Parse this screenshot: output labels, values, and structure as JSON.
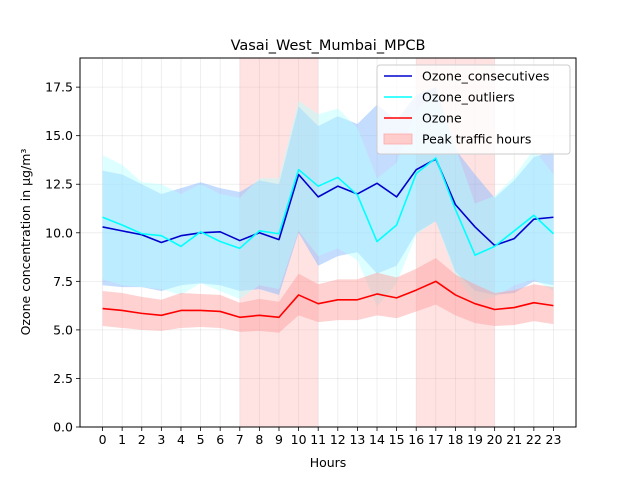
{
  "chart_data": {
    "type": "line",
    "title": "Vasai_West_Mumbai_MPCB",
    "xlabel": "Hours",
    "ylabel": "Ozone concentration in µg/m³",
    "x": [
      0,
      1,
      2,
      3,
      4,
      5,
      6,
      7,
      8,
      9,
      10,
      11,
      12,
      13,
      14,
      15,
      16,
      17,
      18,
      19,
      20,
      21,
      22,
      23
    ],
    "xlim": [
      -1.15,
      24.15
    ],
    "ylim": [
      0,
      19
    ],
    "yticks": [
      0.0,
      2.5,
      5.0,
      7.5,
      10.0,
      12.5,
      15.0,
      17.5
    ],
    "ytick_labels": [
      "0.0",
      "2.5",
      "5.0",
      "7.5",
      "10.0",
      "12.5",
      "15.0",
      "17.5"
    ],
    "grid": true,
    "legend_position": "top-right",
    "peak_traffic_hours": [
      [
        7,
        11
      ],
      [
        16,
        20
      ]
    ],
    "series": [
      {
        "name": "Ozone_consecutives",
        "color": "#0000cd",
        "band_color": "#7db3ff",
        "values": [
          10.3,
          10.1,
          9.9,
          9.5,
          9.85,
          10.0,
          10.05,
          9.6,
          10.0,
          9.65,
          13.0,
          11.85,
          12.4,
          12.0,
          12.55,
          11.85,
          13.25,
          13.8,
          11.45,
          10.3,
          9.35,
          9.7,
          10.7,
          10.8
        ],
        "lower": [
          7.3,
          7.2,
          7.2,
          7.0,
          7.3,
          7.4,
          7.3,
          7.0,
          7.1,
          6.8,
          10.0,
          8.3,
          8.8,
          9.0,
          7.9,
          8.3,
          10.0,
          10.6,
          8.0,
          7.0,
          6.8,
          6.9,
          7.5,
          7.3
        ],
        "upper": [
          13.2,
          13.0,
          12.5,
          12.0,
          12.3,
          12.6,
          12.3,
          12.1,
          12.7,
          12.5,
          16.5,
          15.5,
          16.0,
          15.6,
          16.6,
          15.8,
          17.1,
          17.5,
          14.3,
          13.0,
          11.8,
          12.7,
          13.9,
          14.2
        ]
      },
      {
        "name": "Ozone_outliers",
        "color": "#00ffff",
        "band_color": "#b3ffff",
        "values": [
          10.8,
          10.4,
          9.95,
          9.85,
          9.3,
          10.05,
          9.55,
          9.2,
          10.1,
          9.95,
          13.25,
          12.4,
          12.85,
          11.95,
          9.55,
          10.4,
          13.05,
          13.85,
          11.2,
          8.85,
          9.3,
          10.1,
          10.9,
          9.95
        ],
        "lower": [
          7.6,
          7.3,
          7.2,
          7.1,
          6.8,
          7.4,
          7.0,
          6.6,
          7.3,
          7.1,
          10.1,
          8.8,
          9.2,
          8.6,
          6.2,
          7.4,
          9.9,
          10.6,
          7.8,
          6.4,
          6.7,
          7.3,
          7.6,
          7.0
        ],
        "upper": [
          14.0,
          13.5,
          12.6,
          12.5,
          12.0,
          12.5,
          12.0,
          11.8,
          12.8,
          12.8,
          16.8,
          16.1,
          16.4,
          15.4,
          12.8,
          13.6,
          16.3,
          17.2,
          14.4,
          11.5,
          11.9,
          12.9,
          14.3,
          13.0
        ]
      },
      {
        "name": "Ozone",
        "color": "#ff0000",
        "band_color": "#ff9999",
        "values": [
          6.1,
          6.0,
          5.85,
          5.75,
          6.0,
          6.0,
          5.95,
          5.65,
          5.75,
          5.65,
          6.8,
          6.35,
          6.55,
          6.55,
          6.85,
          6.65,
          7.05,
          7.5,
          6.8,
          6.35,
          6.05,
          6.15,
          6.4,
          6.25
        ],
        "lower": [
          5.2,
          5.1,
          5.0,
          4.95,
          5.1,
          5.15,
          5.1,
          4.9,
          4.95,
          4.85,
          5.75,
          5.4,
          5.5,
          5.5,
          5.75,
          5.6,
          5.95,
          6.3,
          5.75,
          5.35,
          5.2,
          5.25,
          5.45,
          5.3
        ],
        "upper": [
          7.0,
          6.9,
          6.7,
          6.55,
          6.9,
          6.85,
          6.8,
          6.4,
          6.6,
          6.45,
          7.9,
          7.35,
          7.6,
          7.6,
          7.95,
          7.7,
          8.15,
          8.7,
          7.85,
          7.35,
          6.9,
          7.05,
          7.35,
          7.2
        ]
      }
    ],
    "legend": [
      {
        "label": "Ozone_consecutives",
        "kind": "line",
        "color": "#0000cd"
      },
      {
        "label": "Ozone_outliers",
        "kind": "line",
        "color": "#00ffff"
      },
      {
        "label": "Ozone",
        "kind": "line",
        "color": "#ff0000"
      },
      {
        "label": "Peak traffic hours",
        "kind": "patch",
        "color": "#ffcccc"
      }
    ]
  }
}
